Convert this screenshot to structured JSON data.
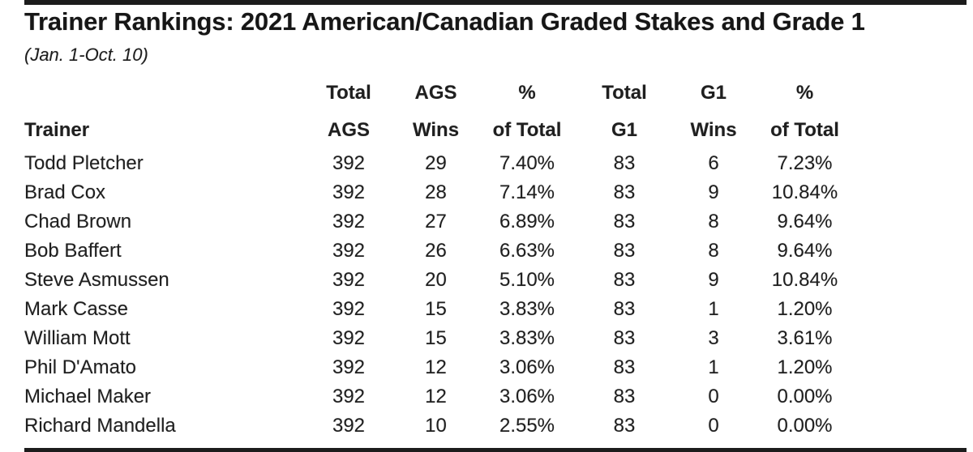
{
  "page": {
    "title": "Trainer Rankings: 2021 American/Canadian Graded Stakes and Grade 1",
    "subtitle": "(Jan. 1-Oct. 10)"
  },
  "table": {
    "corner_label": "Trainer",
    "header_row1": [
      "Total",
      "AGS",
      "%",
      "Total",
      "G1",
      "%"
    ],
    "header_row2": [
      "AGS",
      "Wins",
      "of Total",
      "G1",
      "Wins",
      "of Total"
    ]
  },
  "chart_data": {
    "type": "table",
    "title": "Trainer Rankings: 2021 American/Canadian Graded Stakes and Grade 1",
    "subtitle": "(Jan. 1-Oct. 10)",
    "columns": [
      "Trainer",
      "Total AGS",
      "AGS Wins",
      "% of Total AGS",
      "Total G1",
      "G1 Wins",
      "% of Total G1"
    ],
    "rows": [
      [
        "Todd Pletcher",
        "392",
        "29",
        "7.40%",
        "83",
        "6",
        "7.23%"
      ],
      [
        "Brad Cox",
        "392",
        "28",
        "7.14%",
        "83",
        "9",
        "10.84%"
      ],
      [
        "Chad Brown",
        "392",
        "27",
        "6.89%",
        "83",
        "8",
        "9.64%"
      ],
      [
        "Bob Baffert",
        "392",
        "26",
        "6.63%",
        "83",
        "8",
        "9.64%"
      ],
      [
        "Steve Asmussen",
        "392",
        "20",
        "5.10%",
        "83",
        "9",
        "10.84%"
      ],
      [
        "Mark Casse",
        "392",
        "15",
        "3.83%",
        "83",
        "1",
        "1.20%"
      ],
      [
        "William Mott",
        "392",
        "15",
        "3.83%",
        "83",
        "3",
        "3.61%"
      ],
      [
        "Phil D'Amato",
        "392",
        "12",
        "3.06%",
        "83",
        "1",
        "1.20%"
      ],
      [
        "Michael Maker",
        "392",
        "12",
        "3.06%",
        "83",
        "0",
        "0.00%"
      ],
      [
        "Richard Mandella",
        "392",
        "10",
        "2.55%",
        "83",
        "0",
        "0.00%"
      ]
    ],
    "layout": {
      "gridlines": false,
      "header_lines": 2,
      "trainer_column_align": "left",
      "numeric_columns_align": "center"
    }
  },
  "colors": {
    "background": "#ffffff",
    "text": "#1f1f1f",
    "border_bar": "#1c1c1c"
  }
}
